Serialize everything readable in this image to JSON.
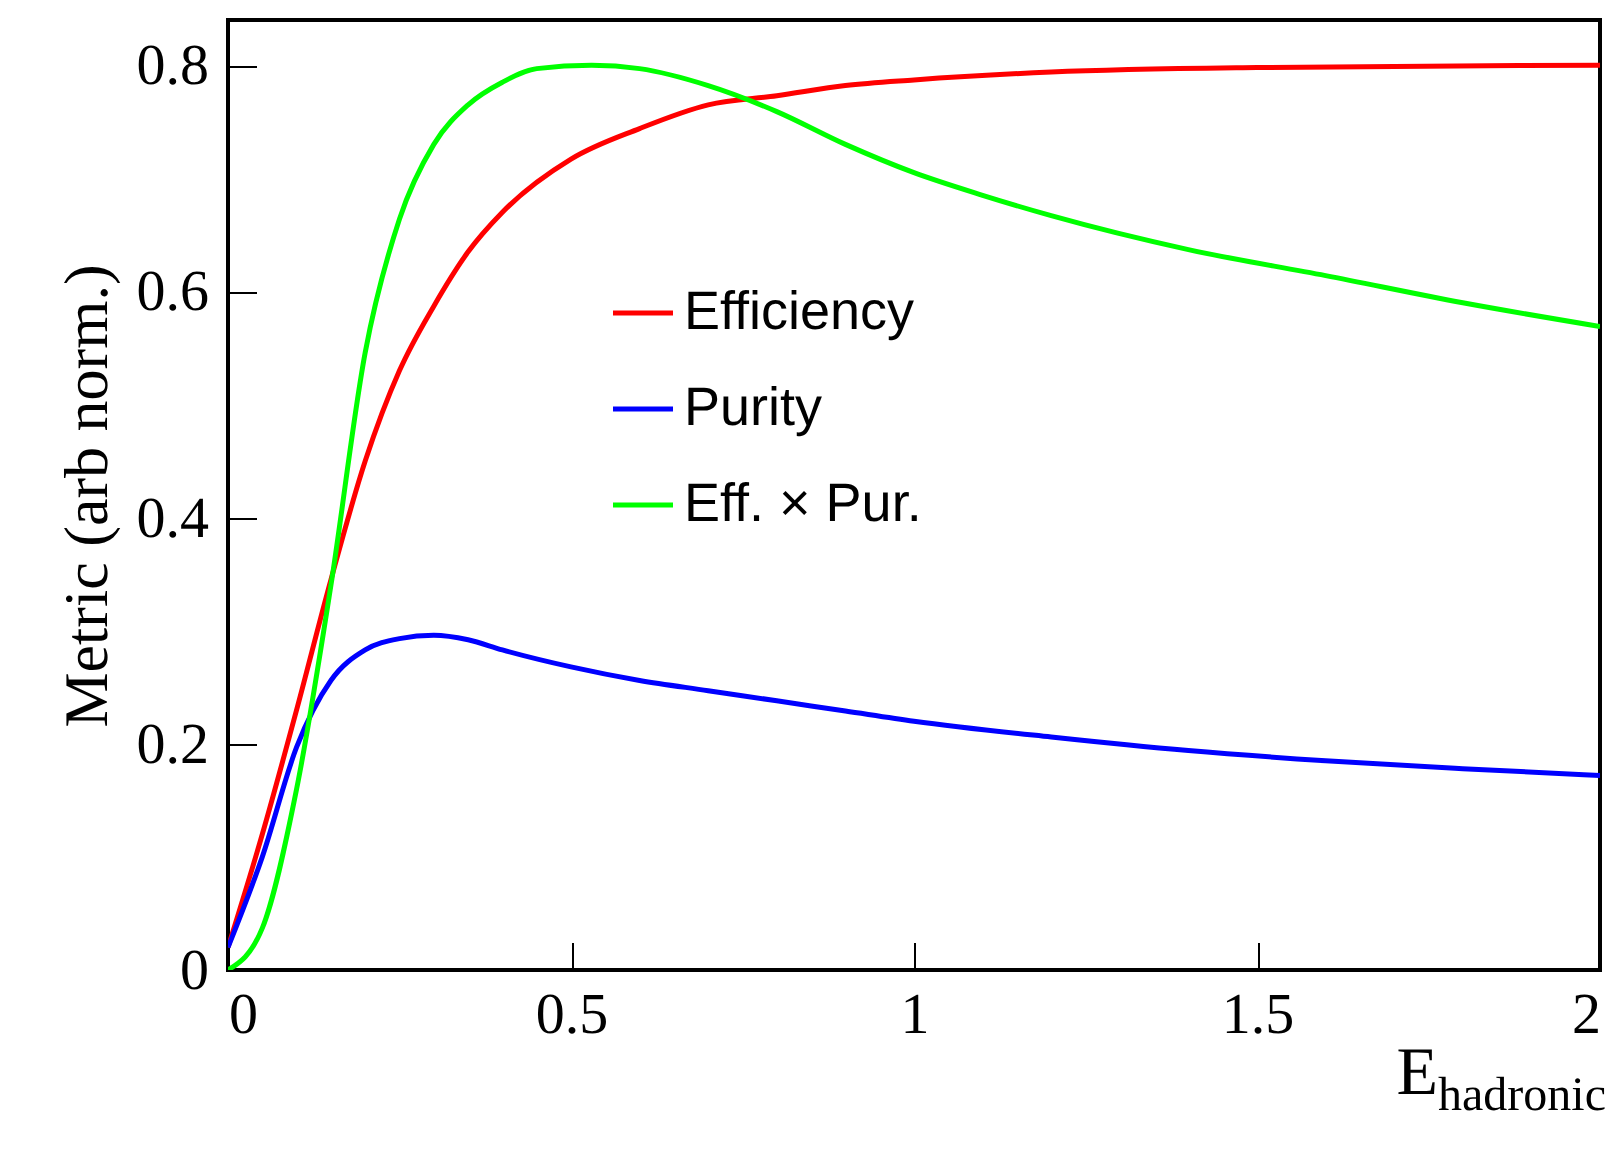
{
  "chart_data": {
    "type": "line",
    "xlabel": "E$_{hadronic}$",
    "ylabel": "Metric (arb norm.)",
    "xlim": [
      0,
      2
    ],
    "xticks": [
      0,
      0.5,
      1,
      1.5,
      2
    ],
    "ylim": [
      0,
      0.84
    ],
    "yticks": [
      0,
      0.2,
      0.4,
      0.6,
      0.8
    ],
    "grid": false,
    "legend": "top left",
    "marker": "none",
    "line_style": "solid",
    "series": [
      {
        "name": "Efficiency",
        "color": "#ff0000",
        "x": [
          0,
          0.05,
          0.1,
          0.15,
          0.2,
          0.25,
          0.3,
          0.35,
          0.4,
          0.5,
          0.6,
          0.7,
          0.8,
          0.9,
          1.0,
          1.2,
          1.5,
          2.0
        ],
        "values": [
          0.02,
          0.12,
          0.23,
          0.345,
          0.45,
          0.53,
          0.587,
          0.635,
          0.67,
          0.717,
          0.744,
          0.765,
          0.773,
          0.782,
          0.787,
          0.794,
          0.798,
          0.8
        ]
      },
      {
        "name": "Purity",
        "color": "#0000ff",
        "x": [
          0,
          0.05,
          0.1,
          0.15,
          0.2,
          0.25,
          0.3,
          0.35,
          0.4,
          0.5,
          0.6,
          0.7,
          0.8,
          0.9,
          1.0,
          1.2,
          1.4,
          1.6,
          1.8,
          2.0
        ],
        "values": [
          0.02,
          0.1,
          0.197,
          0.256,
          0.283,
          0.293,
          0.296,
          0.292,
          0.283,
          0.268,
          0.256,
          0.247,
          0.238,
          0.229,
          0.22,
          0.206,
          0.194,
          0.185,
          0.178,
          0.172
        ]
      },
      {
        "name": "Eff. × Pur.",
        "color": "#00ff00",
        "x": [
          0,
          0.05,
          0.1,
          0.15,
          0.2,
          0.25,
          0.3,
          0.35,
          0.4,
          0.45,
          0.53,
          0.6,
          0.7,
          0.8,
          0.9,
          1.0,
          1.1,
          1.2,
          1.4,
          1.6,
          1.8,
          2.0
        ],
        "values": [
          0,
          0.037,
          0.16,
          0.34,
          0.546,
          0.664,
          0.73,
          0.765,
          0.785,
          0.797,
          0.8,
          0.797,
          0.782,
          0.759,
          0.73,
          0.705,
          0.685,
          0.667,
          0.637,
          0.614,
          0.59,
          0.569
        ]
      }
    ]
  }
}
